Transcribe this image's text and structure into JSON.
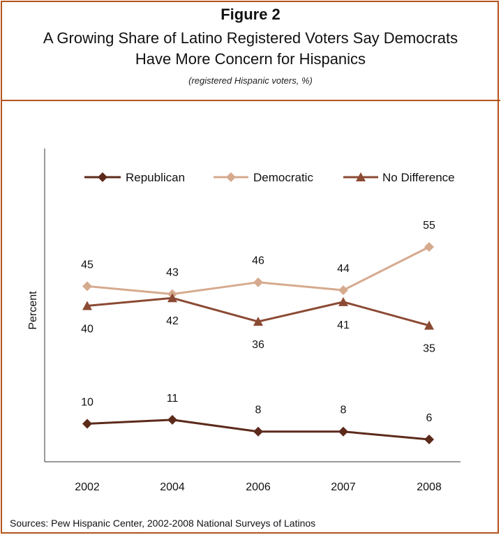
{
  "header": {
    "figure": "Figure 2",
    "title_line1": "A Growing Share of Latino Registered Voters Say Democrats",
    "title_line2": "Have More Concern for Hispanics",
    "subtitle": "(registered Hispanic voters, %)"
  },
  "source": "Sources:  Pew Hispanic Center, 2002-2008 National Surveys of Latinos",
  "colors": {
    "border": "#b5521a",
    "republican": "#5c2a1b",
    "democratic": "#d6aa8e",
    "no_difference": "#8b4a34"
  },
  "chart_data": {
    "type": "line",
    "title": "A Growing Share of Latino Registered Voters Say Democrats Have More Concern for Hispanics",
    "ylabel": "Percent",
    "xlabel": "",
    "categories": [
      "2002",
      "2004",
      "2006",
      "2007",
      "2008"
    ],
    "ylim": [
      2,
      66
    ],
    "legend_position": "top",
    "grid": false,
    "series": [
      {
        "name": "Republican",
        "marker": "diamond",
        "values": [
          10,
          11,
          8,
          8,
          6
        ],
        "label_position": "above"
      },
      {
        "name": "Democratic",
        "marker": "diamond",
        "values": [
          45,
          43,
          46,
          44,
          55
        ],
        "label_position": "above"
      },
      {
        "name": "No Difference",
        "marker": "triangle",
        "values": [
          40,
          42,
          36,
          41,
          35
        ],
        "label_position": "below"
      }
    ]
  }
}
